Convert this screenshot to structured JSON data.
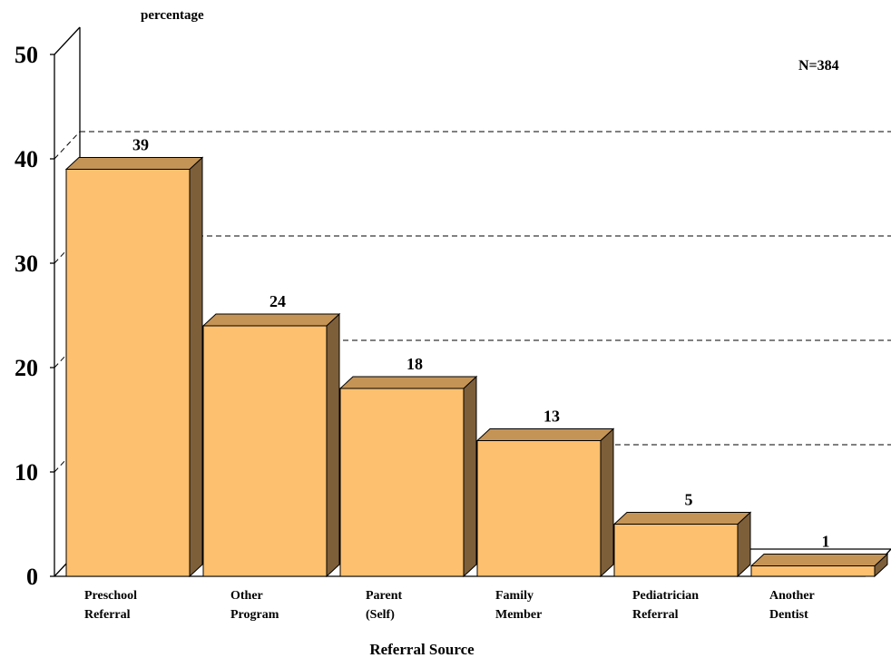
{
  "chart_data": {
    "type": "bar",
    "ylabel": "percentage",
    "xlabel": "Referral Source",
    "annotation": "N=384",
    "ylim": [
      0,
      50
    ],
    "yticks": [
      0,
      10,
      20,
      30,
      40,
      50
    ],
    "grid": "dashed horizontal",
    "categories": [
      [
        "Preschool",
        "Referral"
      ],
      [
        "Other",
        "Program"
      ],
      [
        "Parent",
        "(Self)"
      ],
      [
        "Family",
        "Member"
      ],
      [
        "Pediatrician",
        "Referral"
      ],
      [
        "Another",
        "Dentist"
      ]
    ],
    "values": [
      39,
      24,
      18,
      13,
      5,
      1
    ],
    "colors": {
      "front": "#FDC06E",
      "top": "#C49456",
      "side": "#7D5F3A",
      "outline": "#000000",
      "grid": "#000000"
    }
  }
}
